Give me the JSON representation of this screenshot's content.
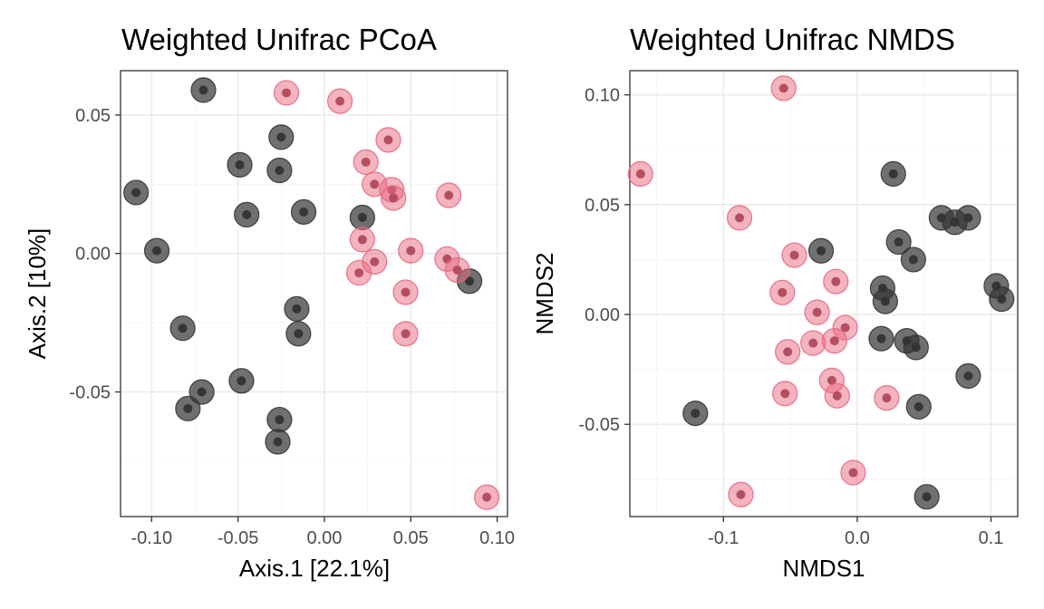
{
  "chart_data": [
    {
      "type": "scatter",
      "title": "Weighted Unifrac PCoA",
      "xlabel": "Axis.1   [22.1%]",
      "ylabel": "Axis.2   [10%]",
      "xlim": [
        -0.118,
        0.106
      ],
      "ylim": [
        -0.095,
        0.066
      ],
      "xticks": [
        -0.1,
        -0.05,
        0.0,
        0.05,
        0.1
      ],
      "xtick_labels": [
        "-0.10",
        "-0.05",
        "0.00",
        "0.05",
        "0.10"
      ],
      "yticks": [
        -0.05,
        0.0,
        0.05
      ],
      "ytick_labels": [
        "-0.05",
        "0.00",
        "0.05"
      ],
      "grid": true,
      "series": [
        {
          "color": "#333333",
          "points": [
            [
              -0.07,
              0.059
            ],
            [
              -0.025,
              0.042
            ],
            [
              -0.049,
              0.032
            ],
            [
              -0.026,
              0.03
            ],
            [
              -0.109,
              0.022
            ],
            [
              -0.045,
              0.014
            ],
            [
              -0.012,
              0.015
            ],
            [
              0.022,
              0.013
            ],
            [
              -0.097,
              0.001
            ],
            [
              -0.016,
              -0.02
            ],
            [
              -0.015,
              -0.029
            ],
            [
              -0.082,
              -0.027
            ],
            [
              0.084,
              -0.01
            ],
            [
              -0.048,
              -0.046
            ],
            [
              -0.071,
              -0.05
            ],
            [
              -0.079,
              -0.056
            ],
            [
              -0.026,
              -0.06
            ],
            [
              -0.027,
              -0.068
            ]
          ]
        },
        {
          "color": "#e8677f",
          "points": [
            [
              -0.022,
              0.058
            ],
            [
              0.009,
              0.055
            ],
            [
              0.037,
              0.041
            ],
            [
              0.024,
              0.033
            ],
            [
              0.029,
              0.025
            ],
            [
              0.039,
              0.023
            ],
            [
              0.04,
              0.02
            ],
            [
              0.072,
              0.021
            ],
            [
              0.022,
              0.005
            ],
            [
              0.05,
              0.001
            ],
            [
              0.029,
              -0.003
            ],
            [
              0.02,
              -0.007
            ],
            [
              0.071,
              -0.002
            ],
            [
              0.077,
              -0.006
            ],
            [
              0.047,
              -0.014
            ],
            [
              0.047,
              -0.029
            ],
            [
              0.094,
              -0.088
            ]
          ]
        }
      ]
    },
    {
      "type": "scatter",
      "title": "Weighted Unifrac NMDS",
      "xlabel": "NMDS1",
      "ylabel": "NMDS2",
      "xlim": [
        -0.17,
        0.12
      ],
      "ylim": [
        -0.092,
        0.111
      ],
      "xticks": [
        -0.1,
        0.0,
        0.1
      ],
      "xtick_labels": [
        "-0.1",
        "0.0",
        "0.1"
      ],
      "yticks": [
        -0.05,
        0.0,
        0.05,
        0.1
      ],
      "ytick_labels": [
        "-0.05",
        "0.00",
        "0.05",
        "0.10"
      ],
      "grid": true,
      "series": [
        {
          "color": "#333333",
          "points": [
            [
              0.027,
              0.064
            ],
            [
              0.063,
              0.044
            ],
            [
              0.073,
              0.042
            ],
            [
              0.083,
              0.044
            ],
            [
              -0.027,
              0.029
            ],
            [
              0.031,
              0.033
            ],
            [
              0.042,
              0.025
            ],
            [
              0.019,
              0.012
            ],
            [
              0.021,
              0.006
            ],
            [
              0.104,
              0.013
            ],
            [
              0.108,
              0.007
            ],
            [
              0.018,
              -0.011
            ],
            [
              0.037,
              -0.012
            ],
            [
              0.044,
              -0.015
            ],
            [
              0.083,
              -0.028
            ],
            [
              -0.121,
              -0.045
            ],
            [
              0.046,
              -0.042
            ],
            [
              0.052,
              -0.083
            ]
          ]
        },
        {
          "color": "#e8677f",
          "points": [
            [
              -0.055,
              0.103
            ],
            [
              -0.162,
              0.064
            ],
            [
              -0.088,
              0.044
            ],
            [
              -0.047,
              0.027
            ],
            [
              -0.016,
              0.015
            ],
            [
              -0.056,
              0.01
            ],
            [
              -0.03,
              0.001
            ],
            [
              -0.009,
              -0.006
            ],
            [
              -0.033,
              -0.013
            ],
            [
              -0.017,
              -0.012
            ],
            [
              -0.052,
              -0.017
            ],
            [
              -0.019,
              -0.03
            ],
            [
              -0.054,
              -0.036
            ],
            [
              -0.015,
              -0.037
            ],
            [
              0.022,
              -0.038
            ],
            [
              -0.003,
              -0.072
            ],
            [
              -0.087,
              -0.082
            ]
          ]
        }
      ]
    }
  ]
}
